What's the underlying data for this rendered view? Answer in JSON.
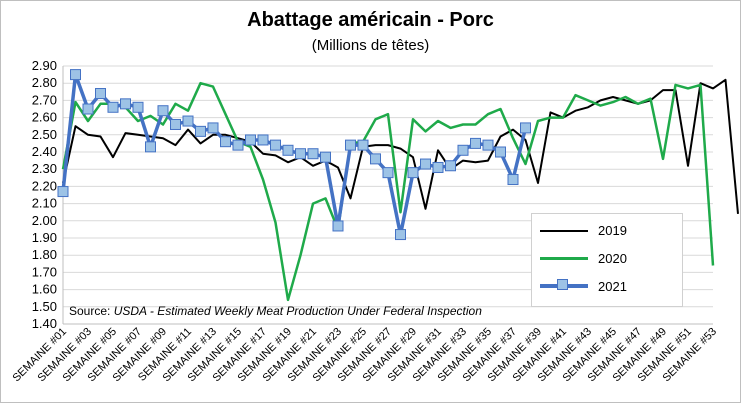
{
  "title": "Abattage américain - Porc",
  "subtitle": "(Millions de têtes)",
  "source_prefix": "Source: ",
  "source_text": "USDA - Estimated Weekly Meat Production Under Federal Inspection",
  "colors": {
    "s2019": "#000000",
    "s2020": "#1faa4a",
    "s2021_line": "#4472c4",
    "s2021_marker": "#9dc3e6"
  },
  "chart_data": {
    "type": "line",
    "title": "Abattage américain - Porc",
    "subtitle": "(Millions de têtes)",
    "ylim": [
      1.4,
      2.9
    ],
    "ytick_step": 0.1,
    "grid": true,
    "legend": "bottom-right",
    "x_tick_labels": [
      "SEMAINE #01",
      "SEMAINE #03",
      "SEMAINE #05",
      "SEMAINE #07",
      "SEMAINE #09",
      "SEMAINE #11",
      "SEMAINE #13",
      "SEMAINE #15",
      "SEMAINE #17",
      "SEMAINE #19",
      "SEMAINE #21",
      "SEMAINE #23",
      "SEMAINE #25",
      "SEMAINE #27",
      "SEMAINE #29",
      "SEMAINE #31",
      "SEMAINE #33",
      "SEMAINE #35",
      "SEMAINE #37",
      "SEMAINE #39",
      "SEMAINE #41",
      "SEMAINE #43",
      "SEMAINE #45",
      "SEMAINE #47",
      "SEMAINE #49",
      "SEMAINE #51",
      "SEMAINE #53"
    ],
    "series": [
      {
        "name": "2019",
        "values": [
          2.22,
          2.55,
          2.5,
          2.49,
          2.37,
          2.51,
          2.5,
          2.49,
          2.48,
          2.44,
          2.53,
          2.45,
          2.5,
          2.5,
          2.48,
          2.46,
          2.39,
          2.38,
          2.34,
          2.37,
          2.32,
          2.35,
          2.31,
          2.13,
          2.43,
          2.44,
          2.44,
          2.42,
          2.37,
          2.07,
          2.41,
          2.3,
          2.35,
          2.34,
          2.35,
          2.49,
          2.53,
          2.47,
          2.22,
          2.63,
          2.6,
          2.64,
          2.66,
          2.7,
          2.72,
          2.7,
          2.68,
          2.7,
          2.76,
          2.76,
          2.32,
          2.8,
          2.77,
          2.82,
          2.04
        ]
      },
      {
        "name": "2020",
        "values": [
          2.3,
          2.69,
          2.58,
          2.68,
          2.68,
          2.66,
          2.58,
          2.61,
          2.56,
          2.68,
          2.64,
          2.8,
          2.78,
          2.62,
          2.46,
          2.43,
          2.24,
          1.99,
          1.54,
          1.8,
          2.1,
          2.13,
          1.95,
          2.45,
          2.46,
          2.59,
          2.62,
          2.05,
          2.59,
          2.52,
          2.58,
          2.54,
          2.56,
          2.56,
          2.62,
          2.65,
          2.48,
          2.33,
          2.58,
          2.6,
          2.6,
          2.73,
          2.7,
          2.67,
          2.69,
          2.72,
          2.68,
          2.71,
          2.36,
          2.79,
          2.77,
          2.79,
          1.74
        ]
      },
      {
        "name": "2021",
        "values": [
          2.17,
          2.85,
          2.65,
          2.74,
          2.66,
          2.68,
          2.66,
          2.43,
          2.64,
          2.56,
          2.58,
          2.52,
          2.54,
          2.46,
          2.44,
          2.47,
          2.47,
          2.44,
          2.41,
          2.39,
          2.39,
          2.37,
          1.97,
          2.44,
          2.44,
          2.36,
          2.28,
          1.92,
          2.28,
          2.33,
          2.31,
          2.32,
          2.41,
          2.45,
          2.44,
          2.4,
          2.24,
          2.54
        ]
      }
    ]
  }
}
